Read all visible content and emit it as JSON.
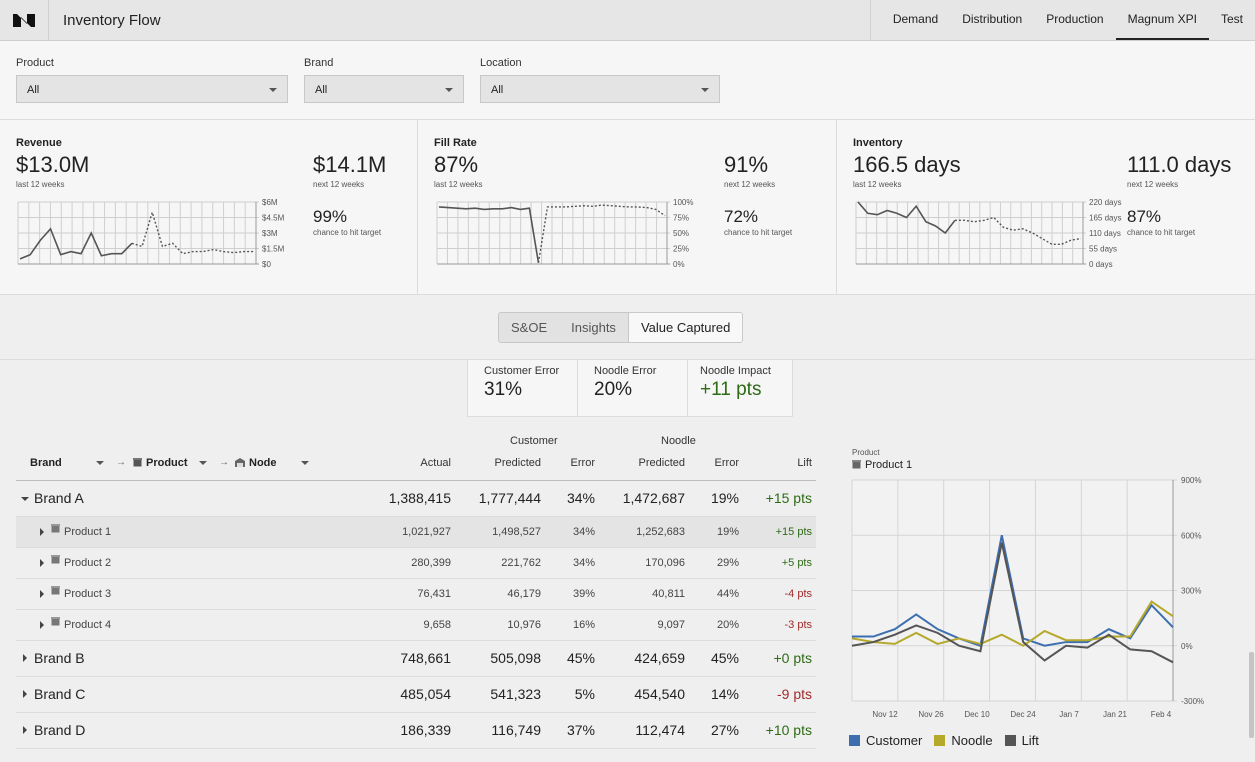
{
  "app": {
    "title": "Inventory Flow"
  },
  "nav": {
    "tabs": [
      "Demand",
      "Distribution",
      "Production",
      "Magnum XPI",
      "Test"
    ],
    "active": "Magnum XPI"
  },
  "filters": [
    {
      "label": "Product",
      "value": "All"
    },
    {
      "label": "Brand",
      "value": "All"
    },
    {
      "label": "Location",
      "value": "All"
    }
  ],
  "kpis": [
    {
      "title": "Revenue",
      "last_value": "$13.0M",
      "last_label": "last 12 weeks",
      "next_value": "$14.1M",
      "next_label": "next 12 weeks",
      "chance_value": "99%",
      "chance_label": "chance to hit target",
      "axis": [
        "$6M",
        "$4.5M",
        "$3M",
        "$1.5M",
        "$0"
      ]
    },
    {
      "title": "Fill Rate",
      "last_value": "87%",
      "last_label": "last 12 weeks",
      "next_value": "91%",
      "next_label": "next 12 weeks",
      "chance_value": "72%",
      "chance_label": "chance to hit target",
      "axis": [
        "100%",
        "75%",
        "50%",
        "25%",
        "0%"
      ]
    },
    {
      "title": "Inventory",
      "last_value": "166.5 days",
      "last_label": "last 12 weeks",
      "next_value": "111.0 days",
      "next_label": "next 12 weeks",
      "chance_value": "87%",
      "chance_label": "chance to hit target",
      "axis": [
        "220 days",
        "165 days",
        "110 days",
        "55 days",
        "0 days"
      ]
    }
  ],
  "sparklines": [
    {
      "min": 0,
      "max": 6,
      "actual": [
        0.5,
        0.9,
        2.3,
        3.4,
        0.9,
        1.2,
        1.0,
        3.0,
        0.8,
        1.0,
        1.0,
        2.0,
        1.7,
        5.0,
        1.7,
        2.0,
        1.0,
        1.2,
        1.2,
        1.4,
        1.2,
        1.1,
        1.2,
        1.2
      ],
      "forecast_start": 12
    },
    {
      "min": 0,
      "max": 100,
      "actual": [
        92,
        91,
        90,
        89,
        90,
        88,
        89,
        89,
        91,
        88,
        90,
        2,
        92
      ],
      "forecast": [
        92,
        92,
        93,
        94,
        93,
        95,
        94,
        93,
        92,
        92,
        91,
        88,
        78
      ],
      "forecast_start": 12
    },
    {
      "min": 0,
      "max": 220,
      "actual": [
        220,
        180,
        175,
        190,
        180,
        165,
        205,
        150,
        135,
        110,
        155
      ],
      "forecast": [
        155,
        150,
        155,
        165,
        130,
        120,
        125,
        110,
        90,
        70,
        70,
        85,
        90
      ],
      "forecast_start": 11
    }
  ],
  "view_toggle": {
    "options": [
      "S&OE",
      "Insights",
      "Value Captured"
    ],
    "active": "Value Captured"
  },
  "summary": [
    {
      "label": "Customer Error",
      "value": "31%"
    },
    {
      "label": "Noodle Error",
      "value": "20%"
    },
    {
      "label": "Noodle Impact",
      "value": "+11 pts"
    }
  ],
  "table": {
    "group_customer": "Customer",
    "group_noodle": "Noodle",
    "hier": {
      "brand": "Brand",
      "product": "Product",
      "node": "Node"
    },
    "columns": [
      "Actual",
      "Predicted",
      "Error",
      "Predicted",
      "Error",
      "Lift"
    ],
    "rows": [
      {
        "name": "Brand A",
        "level": "brand",
        "expanded": true,
        "actual": "1,388,415",
        "cust_pred": "1,777,444",
        "cust_err": "34%",
        "noodle_pred": "1,472,687",
        "noodle_err": "19%",
        "lift": "+15 pts",
        "sign": "pos"
      },
      {
        "name": "Product 1",
        "level": "product",
        "selected": true,
        "actual": "1,021,927",
        "cust_pred": "1,498,527",
        "cust_err": "34%",
        "noodle_pred": "1,252,683",
        "noodle_err": "19%",
        "lift": "+15 pts",
        "sign": "pos"
      },
      {
        "name": "Product 2",
        "level": "product",
        "actual": "280,399",
        "cust_pred": "221,762",
        "cust_err": "34%",
        "noodle_pred": "170,096",
        "noodle_err": "29%",
        "lift": "+5 pts",
        "sign": "pos"
      },
      {
        "name": "Product 3",
        "level": "product",
        "actual": "76,431",
        "cust_pred": "46,179",
        "cust_err": "39%",
        "noodle_pred": "40,811",
        "noodle_err": "44%",
        "lift": "-4 pts",
        "sign": "neg"
      },
      {
        "name": "Product 4",
        "level": "product",
        "actual": "9,658",
        "cust_pred": "10,976",
        "cust_err": "16%",
        "noodle_pred": "9,097",
        "noodle_err": "20%",
        "lift": "-3 pts",
        "sign": "neg"
      },
      {
        "name": "Brand B",
        "level": "brand",
        "actual": "748,661",
        "cust_pred": "505,098",
        "cust_err": "45%",
        "noodle_pred": "424,659",
        "noodle_err": "45%",
        "lift": "+0 pts",
        "sign": "pos"
      },
      {
        "name": "Brand C",
        "level": "brand",
        "actual": "485,054",
        "cust_pred": "541,323",
        "cust_err": "5%",
        "noodle_pred": "454,540",
        "noodle_err": "14%",
        "lift": "-9 pts",
        "sign": "neg"
      },
      {
        "name": "Brand D",
        "level": "brand",
        "actual": "186,339",
        "cust_pred": "116,749",
        "cust_err": "37%",
        "noodle_pred": "112,474",
        "noodle_err": "27%",
        "lift": "+10 pts",
        "sign": "pos"
      }
    ]
  },
  "detail_chart": {
    "label": "Product",
    "product": "Product 1",
    "chart_data": {
      "type": "line",
      "x_labels": [
        "Nov 12",
        "Nov 26",
        "Dec 10",
        "Dec 24",
        "Jan 7",
        "Jan 21",
        "Feb 4"
      ],
      "y_ticks": [
        "900%",
        "600%",
        "300%",
        "0%",
        "-300%"
      ],
      "ylim": [
        -300,
        900
      ],
      "series": [
        {
          "name": "Customer",
          "color": "#3d6fb0",
          "values": [
            50,
            50,
            90,
            170,
            90,
            40,
            0,
            600,
            40,
            0,
            20,
            20,
            90,
            40,
            220,
            100
          ]
        },
        {
          "name": "Noodle",
          "color": "#b5a82a",
          "values": [
            40,
            20,
            10,
            70,
            10,
            40,
            10,
            60,
            0,
            80,
            30,
            30,
            50,
            50,
            240,
            160
          ]
        },
        {
          "name": "Lift",
          "color": "#555555",
          "values": [
            0,
            20,
            60,
            110,
            70,
            0,
            -30,
            560,
            20,
            -80,
            0,
            -10,
            60,
            -20,
            -30,
            -90
          ]
        }
      ]
    }
  }
}
